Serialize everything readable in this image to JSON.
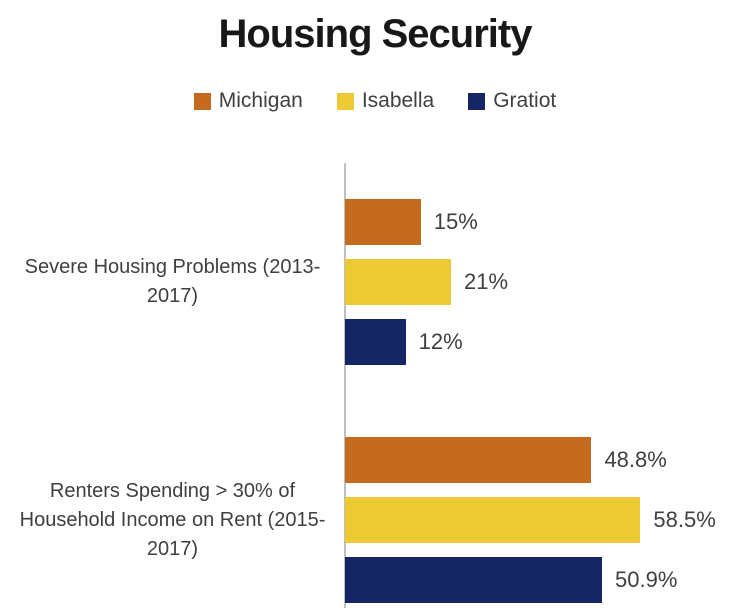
{
  "chart_data": {
    "type": "bar",
    "orientation": "horizontal",
    "title": "Housing Security",
    "categories": [
      "Severe Housing Problems (2013-2017)",
      "Renters Spending > 30% of Household Income on Rent (2015-2017)"
    ],
    "series": [
      {
        "name": "Michigan",
        "color": "#C46B20",
        "values": [
          15,
          48.8
        ]
      },
      {
        "name": "Isabella",
        "color": "#ECCA33",
        "values": [
          21,
          58.5
        ]
      },
      {
        "name": "Gratiot",
        "color": "#162564",
        "values": [
          12,
          50.9
        ]
      }
    ],
    "data_labels": [
      [
        "15%",
        "21%",
        "12%"
      ],
      [
        "48.8%",
        "58.5%",
        "50.9%"
      ]
    ],
    "value_unit": "%",
    "xlim": [
      0,
      80
    ],
    "grid": false,
    "x_axis_labels_visible": false,
    "legend_position": "top",
    "axis_color": "#BFBFBF",
    "text_color": "#3F3F3F",
    "title_color": "#181818"
  }
}
